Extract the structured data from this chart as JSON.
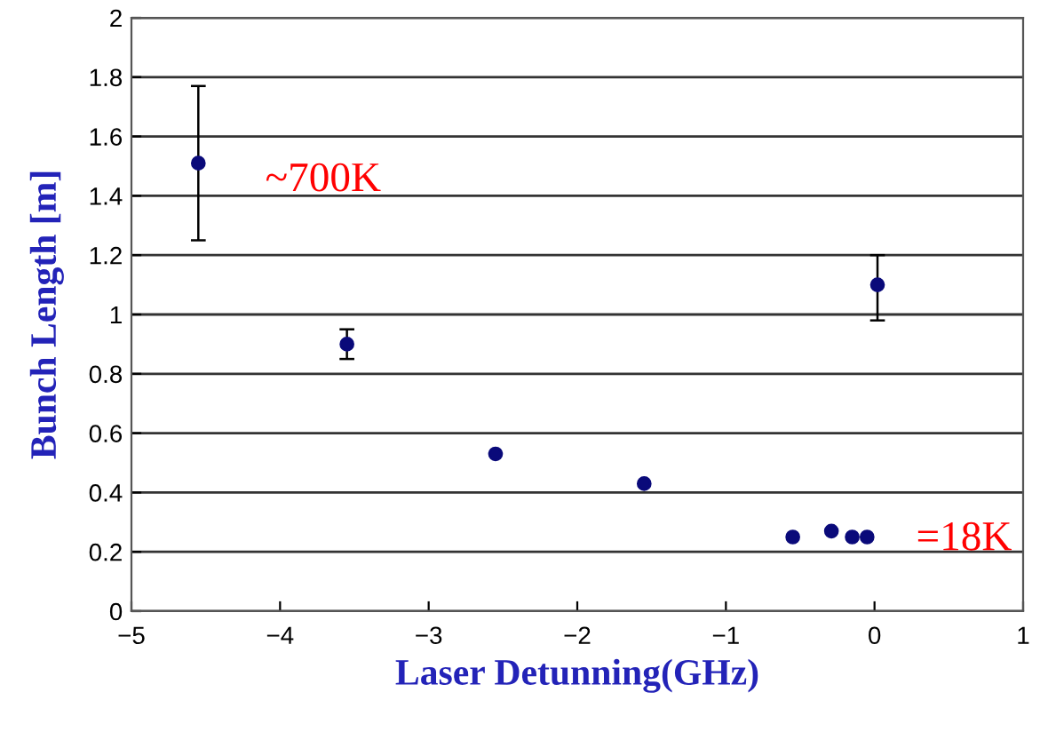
{
  "chart_data": {
    "type": "scatter",
    "xlabel": "Laser Detunning(GHz)",
    "ylabel": "Bunch Length [m]",
    "x": [
      -4.55,
      -3.55,
      -2.55,
      -1.55,
      -0.55,
      -0.29,
      -0.15,
      -0.05,
      0.02
    ],
    "series": [
      {
        "color": "#0a0a7a",
        "values": [
          1.51,
          0.9,
          0.53,
          0.43,
          0.25,
          0.27,
          0.25,
          0.25,
          1.1
        ],
        "errors": [
          [
            1.25,
            1.77
          ],
          [
            0.85,
            0.95
          ],
          null,
          null,
          null,
          null,
          null,
          null,
          [
            0.98,
            1.2
          ]
        ]
      }
    ],
    "xlim": [
      -5,
      1
    ],
    "xticks": [
      -5,
      -4,
      -3,
      -2,
      -1,
      0,
      1
    ],
    "ylim": [
      0,
      2
    ],
    "yticks": [
      0,
      0.2,
      0.4,
      0.6,
      0.8,
      1,
      1.2,
      1.4,
      1.6,
      1.8,
      2
    ],
    "grid": "y",
    "marker": "circle",
    "legend": false,
    "annotations": [
      "~700K",
      "=18K"
    ]
  }
}
